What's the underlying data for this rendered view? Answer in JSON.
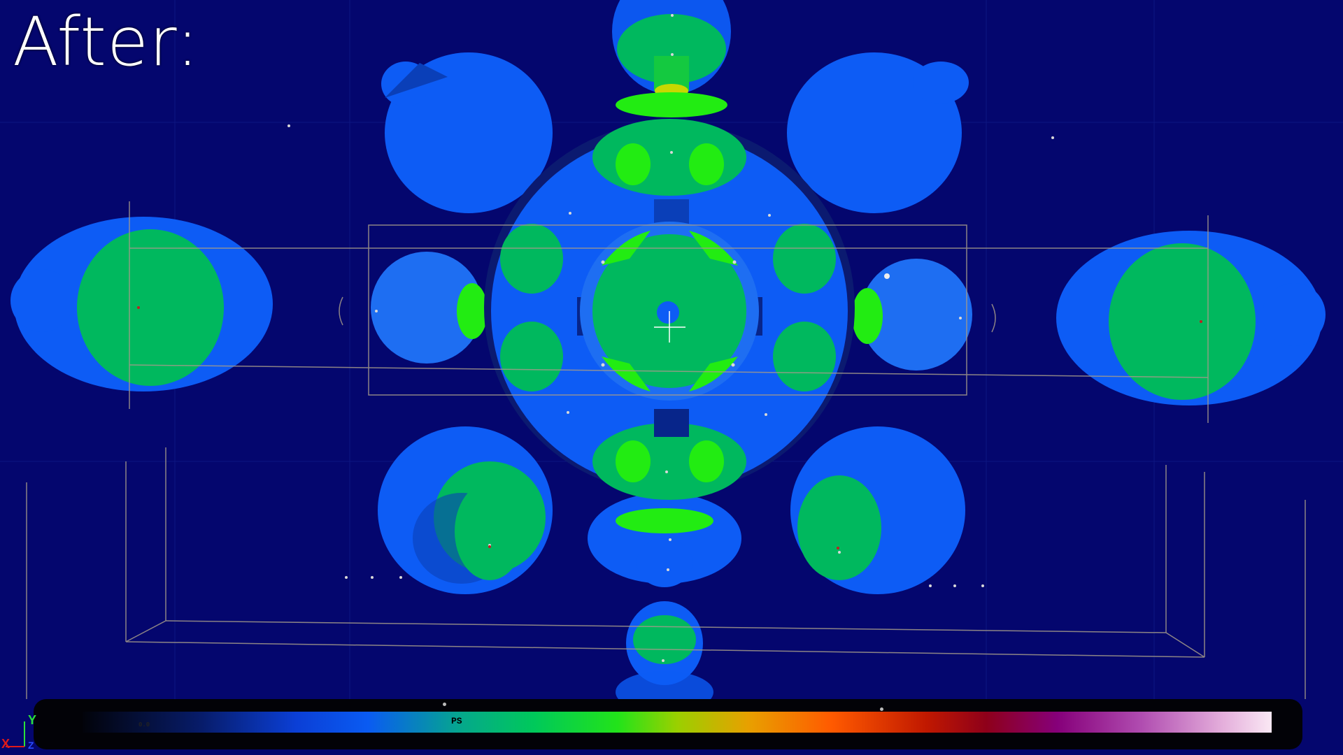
{
  "overlay": {
    "title": "After:"
  },
  "legend": {
    "label_ps": "PS",
    "label_min": "0.0"
  },
  "axes": {
    "y": "Y",
    "x": "X",
    "z": "Z"
  },
  "colors": {
    "background": "#04066e",
    "coverage_blue": "#0d5cf5",
    "coverage_mid_blue": "#1e6ef2",
    "coverage_green": "#00b85e",
    "coverage_bright_green": "#22ec12",
    "coverage_yellow": "#c8d800",
    "wire": "#a49a8a"
  }
}
